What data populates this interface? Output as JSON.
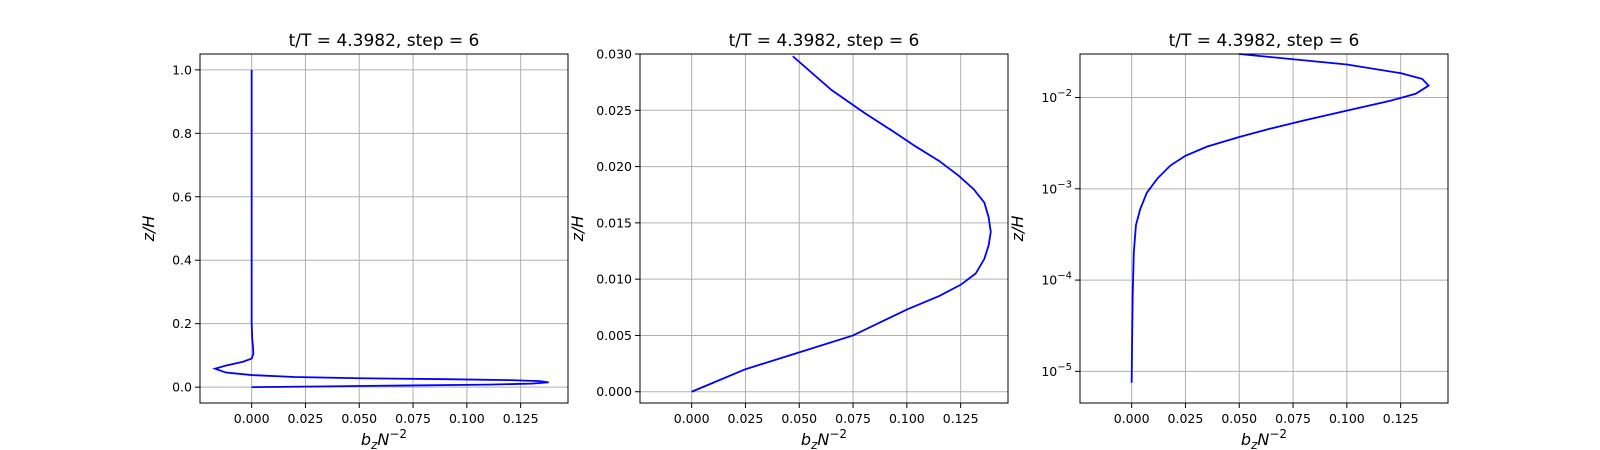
{
  "chart_data": [
    {
      "type": "line",
      "title": "t/T = 4.3982, step = 6",
      "xlabel": "b_zN^{-2}",
      "ylabel": "z/H",
      "yscale": "linear",
      "xlim": [
        -0.024,
        0.147
      ],
      "ylim": [
        -0.05,
        1.05
      ],
      "grid": true,
      "xticks": [
        0.0,
        0.025,
        0.05,
        0.075,
        0.1,
        0.125
      ],
      "xtick_labels": [
        "0.000",
        "0.025",
        "0.050",
        "0.075",
        "0.100",
        "0.125"
      ],
      "yticks": [
        0.0,
        0.2,
        0.4,
        0.6,
        0.8,
        1.0
      ],
      "ytick_labels": [
        "0.0",
        "0.2",
        "0.4",
        "0.6",
        "0.8",
        "1.0"
      ],
      "series": [
        {
          "color": "#0000ff",
          "x": [
            0.0,
            0.03,
            0.07,
            0.11,
            0.13,
            0.138,
            0.134,
            0.12,
            0.09,
            0.05,
            0.02,
            0.0,
            -0.012,
            -0.017,
            -0.012,
            -0.004,
            0.0,
            0.0008,
            0.0006,
            0.0003,
            0.0,
            0.0,
            0.0
          ],
          "y": [
            0.0,
            0.002,
            0.005,
            0.008,
            0.011,
            0.015,
            0.019,
            0.022,
            0.025,
            0.028,
            0.032,
            0.038,
            0.046,
            0.058,
            0.068,
            0.08,
            0.09,
            0.105,
            0.13,
            0.15,
            0.2,
            0.6,
            1.0
          ]
        }
      ]
    },
    {
      "type": "line",
      "title": "t/T = 4.3982, step = 6",
      "xlabel": "b_zN^{-2}",
      "ylabel": "z/H",
      "yscale": "linear",
      "xlim": [
        -0.024,
        0.147
      ],
      "ylim": [
        -0.001,
        0.03
      ],
      "grid": true,
      "xticks": [
        0.0,
        0.025,
        0.05,
        0.075,
        0.1,
        0.125
      ],
      "xtick_labels": [
        "0.000",
        "0.025",
        "0.050",
        "0.075",
        "0.100",
        "0.125"
      ],
      "yticks": [
        0.0,
        0.005,
        0.01,
        0.015,
        0.02,
        0.025,
        0.03
      ],
      "ytick_labels": [
        "0.000",
        "0.005",
        "0.010",
        "0.015",
        "0.020",
        "0.025",
        "0.030"
      ],
      "series": [
        {
          "color": "#0000ff",
          "x": [
            0.0,
            0.01,
            0.025,
            0.05,
            0.075,
            0.1,
            0.115,
            0.125,
            0.132,
            0.136,
            0.138,
            0.139,
            0.138,
            0.136,
            0.131,
            0.124,
            0.115,
            0.104,
            0.093,
            0.08,
            0.065,
            0.047
          ],
          "y": [
            0.0,
            0.0008,
            0.002,
            0.0035,
            0.005,
            0.0073,
            0.0085,
            0.0095,
            0.0105,
            0.0118,
            0.013,
            0.0142,
            0.0155,
            0.0168,
            0.018,
            0.0192,
            0.0205,
            0.0218,
            0.0232,
            0.0248,
            0.0268,
            0.0298
          ]
        }
      ]
    },
    {
      "type": "line",
      "title": "t/T = 4.3982, step = 6",
      "xlabel": "b_zN^{-2}",
      "ylabel": "z/H",
      "yscale": "log",
      "xlim": [
        -0.024,
        0.147
      ],
      "ylim": [
        4.5e-06,
        0.03
      ],
      "grid": true,
      "xticks": [
        0.0,
        0.025,
        0.05,
        0.075,
        0.1,
        0.125
      ],
      "xtick_labels": [
        "0.000",
        "0.025",
        "0.050",
        "0.075",
        "0.100",
        "0.125"
      ],
      "yticks": [
        1e-05,
        0.0001,
        0.001,
        0.01
      ],
      "ytick_labels": [
        {
          "base": "10",
          "exp": "−5"
        },
        {
          "base": "10",
          "exp": "−4"
        },
        {
          "base": "10",
          "exp": "−3"
        },
        {
          "base": "10",
          "exp": "−2"
        }
      ],
      "series": [
        {
          "color": "#0000ff",
          "x": [
            0.0,
            0.0002,
            0.0005,
            0.001,
            0.002,
            0.004,
            0.007,
            0.012,
            0.018,
            0.025,
            0.035,
            0.05,
            0.065,
            0.08,
            0.1,
            0.12,
            0.132,
            0.138,
            0.135,
            0.125,
            0.1,
            0.05
          ],
          "y": [
            7.5e-06,
            2e-05,
            7e-05,
            0.0002,
            0.0004,
            0.0006,
            0.0009,
            0.0013,
            0.0018,
            0.0023,
            0.0029,
            0.0037,
            0.0046,
            0.0056,
            0.0072,
            0.0092,
            0.011,
            0.0135,
            0.016,
            0.0185,
            0.023,
            0.03
          ]
        }
      ]
    }
  ]
}
